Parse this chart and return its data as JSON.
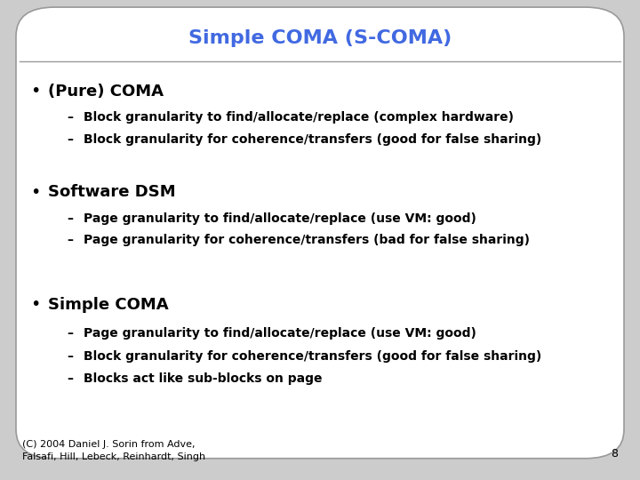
{
  "title": "Simple COMA (S-COMA)",
  "title_color": "#4169E1",
  "title_fontsize": 16,
  "background_color": "#FFFFFF",
  "slide_bg": "#CCCCCC",
  "border_color": "#999999",
  "bullet_color": "#000000",
  "bullet_fontsize": 13,
  "sub_fontsize": 10,
  "bullets": [
    {
      "text": "(Pure) COMA",
      "subs": [
        "Block granularity to find/allocate/replace (complex hardware)",
        "Block granularity for coherence/transfers (good for false sharing)"
      ]
    },
    {
      "text": "Software DSM",
      "subs": [
        "Page granularity to find/allocate/replace (use VM: good)",
        "Page granularity for coherence/transfers (bad for false sharing)"
      ]
    },
    {
      "text": "Simple COMA",
      "subs": [
        "Page granularity to find/allocate/replace (use VM: good)",
        "Block granularity for coherence/transfers (good for false sharing)",
        "Blocks act like sub-blocks on page"
      ]
    }
  ],
  "footer_line1": "(C) 2004 Daniel J. Sorin from Adve,",
  "footer_line2": "Falsafi, Hill, Lebeck, Reinhardt, Singh",
  "page_number": "8",
  "footer_fontsize": 8,
  "y_positions": {
    "0_bullet": 0.81,
    "0_subs": [
      0.755,
      0.71
    ],
    "1_bullet": 0.6,
    "1_subs": [
      0.545,
      0.5
    ],
    "2_bullet": 0.365,
    "2_subs": [
      0.305,
      0.258,
      0.212
    ]
  }
}
